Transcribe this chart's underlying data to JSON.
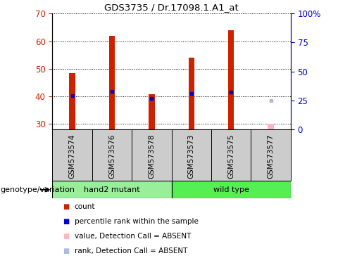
{
  "title": "GDS3735 / Dr.17098.1.A1_at",
  "samples": [
    "GSM573574",
    "GSM573576",
    "GSM573578",
    "GSM573573",
    "GSM573575",
    "GSM573577"
  ],
  "count_values": [
    48.5,
    62.0,
    40.8,
    54.0,
    64.0,
    30.2
  ],
  "rank_values": [
    40.2,
    41.8,
    39.2,
    41.0,
    41.5,
    38.5
  ],
  "absent_flags": [
    false,
    false,
    false,
    false,
    false,
    true
  ],
  "bar_color": "#CC2200",
  "absent_bar_color": "#FFB6C1",
  "rank_color": "#0000CC",
  "absent_rank_color": "#AABBDD",
  "ylim_left": [
    28,
    70
  ],
  "yticks_left": [
    30,
    40,
    50,
    60,
    70
  ],
  "yticks_right": [
    0,
    25,
    50,
    75,
    100
  ],
  "yright_labels": [
    "0",
    "25",
    "50",
    "75",
    "100%"
  ],
  "bar_bottom": 28,
  "bar_width": 0.15,
  "group1_color": "#99EE99",
  "group2_color": "#55EE55",
  "sample_bg_color": "#CCCCCC",
  "genotype_label": "genotype/variation",
  "legend_items": [
    {
      "label": "count",
      "color": "#CC2200"
    },
    {
      "label": "percentile rank within the sample",
      "color": "#0000CC"
    },
    {
      "label": "value, Detection Call = ABSENT",
      "color": "#FFB6C1"
    },
    {
      "label": "rank, Detection Call = ABSENT",
      "color": "#AABBDD"
    }
  ]
}
